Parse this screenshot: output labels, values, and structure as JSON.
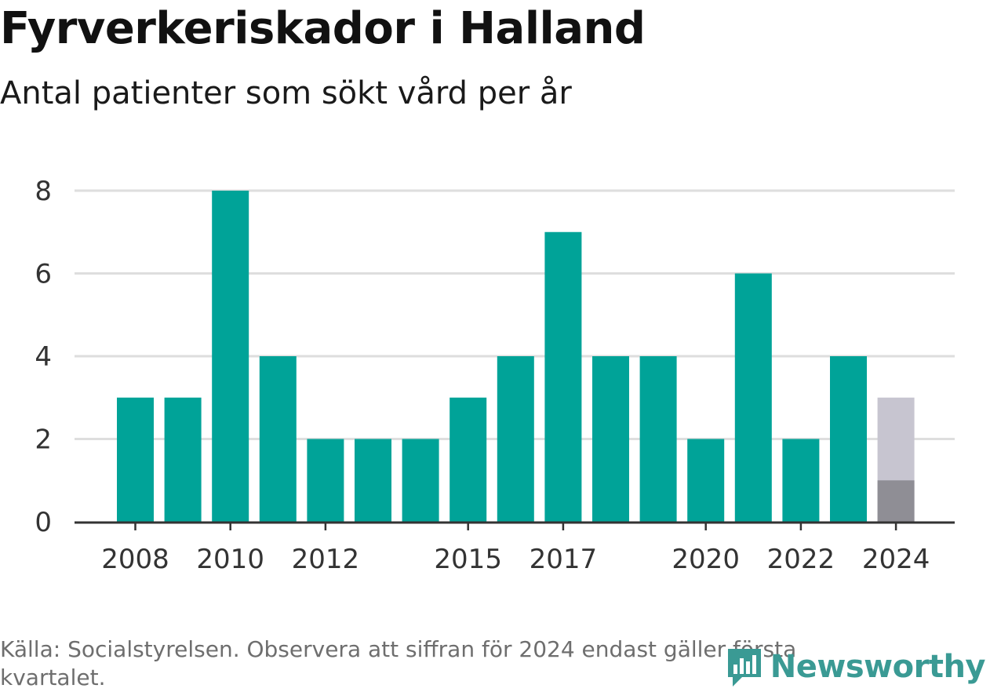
{
  "title": "Fyrverkeriskador i Halland",
  "subtitle": "Antal patienter som sökt vård per år",
  "footnote": "Källa: Socialstyrelsen. Observera att siffran för 2024 endast gäller första kvartalet.",
  "logo": {
    "name": "Newsworthy",
    "icon": "bar-chart-speech-bubble-icon"
  },
  "colors": {
    "bar": "#00a398",
    "bar_2024_first_quarter": "#8f8e95",
    "bar_2024_remainder": "#c7c5d0",
    "grid": "#dedede",
    "axis": "#333333",
    "tick_text": "#333333",
    "logo": "#3a9a94"
  },
  "chart_data": {
    "type": "bar",
    "categories": [
      "2008",
      "2009",
      "2010",
      "2011",
      "2012",
      "2013",
      "2014",
      "2015",
      "2016",
      "2017",
      "2018",
      "2019",
      "2020",
      "2021",
      "2022",
      "2023",
      "2024"
    ],
    "series": [
      {
        "values": [
          3,
          3,
          8,
          4,
          2,
          2,
          2,
          3,
          4,
          7,
          4,
          4,
          2,
          6,
          2,
          4,
          1
        ]
      },
      {
        "values": [
          null,
          null,
          null,
          null,
          null,
          null,
          null,
          null,
          null,
          null,
          null,
          null,
          null,
          null,
          null,
          null,
          3
        ]
      }
    ],
    "xticks": [
      "2008",
      "2010",
      "2012",
      "2015",
      "2017",
      "2020",
      "2022",
      "2024"
    ],
    "yticks": [
      0,
      2,
      4,
      6,
      8
    ],
    "ylim": [
      0,
      8
    ],
    "grid": true,
    "xlabel": "",
    "ylabel": ""
  }
}
